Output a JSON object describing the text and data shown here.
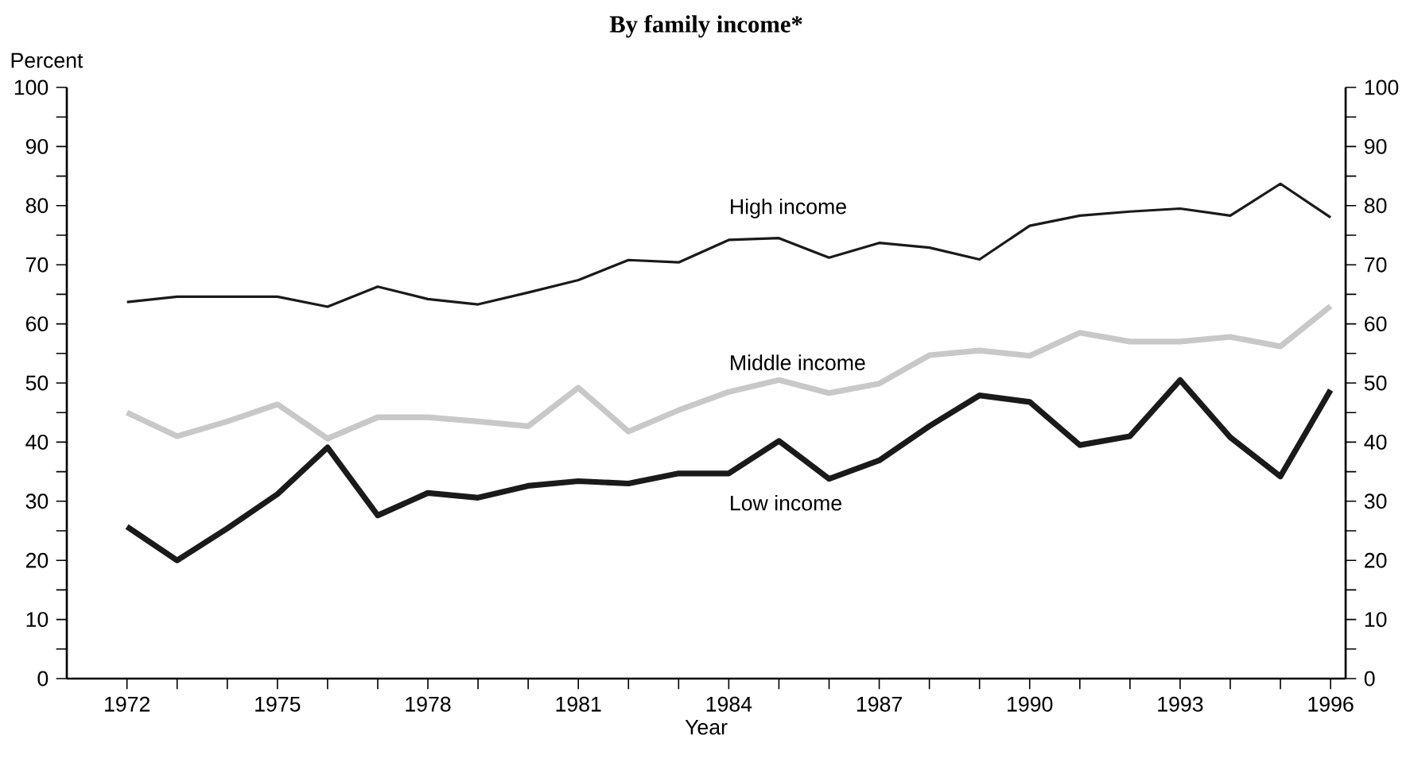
{
  "chart_data": {
    "type": "line",
    "title": "By family income*",
    "ylabel": "Percent",
    "xlabel": "Year",
    "x": [
      1972,
      1973,
      1974,
      1975,
      1976,
      1977,
      1978,
      1979,
      1980,
      1981,
      1982,
      1983,
      1984,
      1985,
      1986,
      1987,
      1988,
      1989,
      1990,
      1991,
      1992,
      1993,
      1994,
      1995,
      1996
    ],
    "series": [
      {
        "name": "High income",
        "color": "#1a1a1a",
        "values": [
          63.7,
          64.6,
          64.6,
          64.6,
          62.9,
          66.3,
          64.2,
          63.3,
          65.3,
          67.4,
          70.8,
          70.4,
          74.2,
          74.5,
          71.2,
          73.7,
          72.9,
          70.9,
          76.6,
          78.3,
          79.0,
          79.5,
          78.3,
          83.7,
          78.0
        ]
      },
      {
        "name": "Middle income",
        "color": "#c8c8c8",
        "values": [
          45.0,
          41.0,
          43.5,
          46.4,
          40.6,
          44.2,
          44.2,
          43.5,
          42.7,
          49.2,
          41.8,
          45.4,
          48.5,
          50.5,
          48.3,
          49.9,
          54.7,
          55.5,
          54.6,
          58.5,
          57.0,
          57.0,
          57.8,
          56.2,
          63.0
        ]
      },
      {
        "name": "Low income",
        "color": "#1a1a1a",
        "values": [
          25.7,
          20.0,
          25.4,
          31.2,
          39.1,
          27.6,
          31.4,
          30.6,
          32.6,
          33.4,
          33.0,
          34.7,
          34.7,
          40.2,
          33.8,
          36.9,
          42.7,
          47.9,
          46.8,
          39.5,
          41.0,
          50.5,
          40.8,
          34.2,
          48.8
        ]
      }
    ],
    "xlim": [
      1970.8,
      1996.3
    ],
    "xticks": [
      1972,
      {
        "value": 1973,
        "label": null
      },
      {
        "value": 1974,
        "label": null
      },
      1975,
      {
        "value": 1976,
        "label": null
      },
      {
        "value": 1977,
        "label": null
      },
      1978,
      {
        "value": 1979,
        "label": null
      },
      {
        "value": 1980,
        "label": null
      },
      1981,
      {
        "value": 1982,
        "label": null
      },
      {
        "value": 1983,
        "label": null
      },
      1984,
      {
        "value": 1985,
        "label": null
      },
      {
        "value": 1986,
        "label": null
      },
      1987,
      {
        "value": 1988,
        "label": null
      },
      {
        "value": 1989,
        "label": null
      },
      1990,
      {
        "value": 1991,
        "label": null
      },
      {
        "value": 1992,
        "label": null
      },
      1993,
      {
        "value": 1994,
        "label": null
      },
      {
        "value": 1995,
        "label": null
      },
      1996
    ],
    "ylim": [
      0,
      100
    ],
    "yticks": [
      0,
      {
        "value": 5,
        "label": null
      },
      10,
      {
        "value": 15,
        "label": null
      },
      20,
      {
        "value": 25,
        "label": null
      },
      30,
      {
        "value": 35,
        "label": null
      },
      40,
      {
        "value": 45,
        "label": null
      },
      50,
      {
        "value": 55,
        "label": null
      },
      60,
      {
        "value": 65,
        "label": null
      },
      70,
      {
        "value": 75,
        "label": null
      },
      80,
      {
        "value": 85,
        "label": null
      },
      90,
      {
        "value": 95,
        "label": null
      },
      100
    ],
    "y2lim": [
      0,
      100
    ],
    "y2ticks": [
      0,
      {
        "value": 5,
        "label": null
      },
      10,
      {
        "value": 15,
        "label": null
      },
      20,
      {
        "value": 25,
        "label": null
      },
      30,
      {
        "value": 35,
        "label": null
      },
      40,
      {
        "value": 45,
        "label": null
      },
      50,
      {
        "value": 55,
        "label": null
      },
      60,
      {
        "value": 65,
        "label": null
      },
      70,
      {
        "value": 75,
        "label": null
      },
      80,
      {
        "value": 85,
        "label": null
      },
      90,
      {
        "value": 95,
        "label": null
      },
      100
    ],
    "grid": false,
    "legend": false,
    "marker": "none",
    "line_style": "solid"
  }
}
